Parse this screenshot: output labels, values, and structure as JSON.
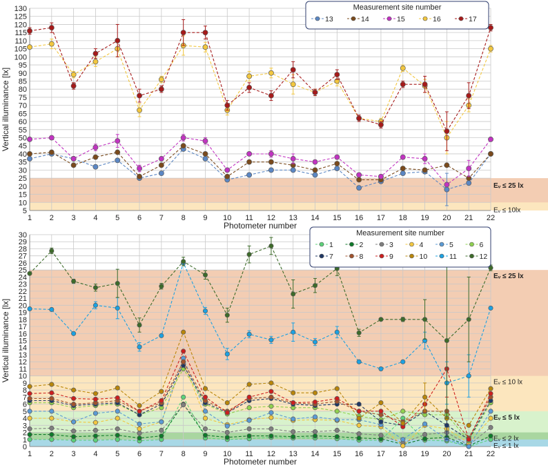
{
  "chart_data": [
    {
      "type": "line",
      "title": "",
      "xlabel": "Photometer number",
      "ylabel": "Vertical illuminance [lx]",
      "categories": [
        "1",
        "2",
        "3",
        "4",
        "5",
        "6",
        "7",
        "8",
        "9",
        "10",
        "11",
        "12",
        "13",
        "14",
        "15",
        "16",
        "17",
        "18",
        "19",
        "20",
        "21",
        "22"
      ],
      "ylim": [
        5,
        130
      ],
      "yticks": [
        5,
        10,
        15,
        20,
        25,
        30,
        35,
        40,
        45,
        50,
        55,
        60,
        65,
        70,
        75,
        80,
        85,
        90,
        95,
        100,
        105,
        110,
        115,
        120,
        125,
        130
      ],
      "legend_title": "Measurement site number",
      "legend_position": "top-right",
      "zones": [
        {
          "label": "Eᵥ ≤ 25 lx",
          "from": 5,
          "to": 25,
          "color": "#f3cdb3"
        },
        {
          "label": "Eᵥ ≤ 10lx",
          "from": 5,
          "to": 10,
          "color": "#fce6be"
        }
      ],
      "series": [
        {
          "name": "13",
          "color": "#5b87c4",
          "values": [
            37,
            40,
            37,
            32,
            36,
            25,
            28,
            43,
            37,
            24,
            27,
            30,
            30,
            27,
            31,
            19,
            23,
            28,
            29,
            18,
            22,
            40
          ],
          "errors": [
            0,
            0,
            0,
            0,
            0,
            0,
            0,
            0,
            0,
            0,
            0,
            0,
            0,
            0,
            0,
            0,
            0,
            0,
            0,
            10,
            0,
            0
          ]
        },
        {
          "name": "14",
          "color": "#7a4a1c",
          "values": [
            40,
            41,
            33,
            38,
            41,
            26,
            33,
            45,
            40,
            26,
            35,
            35,
            33,
            30,
            34,
            24,
            24,
            31,
            30,
            33,
            25,
            40
          ],
          "errors": [
            0,
            0,
            0,
            0,
            0,
            0,
            0,
            0,
            0,
            0,
            0,
            0,
            0,
            0,
            0,
            0,
            0,
            0,
            0,
            0,
            0,
            0
          ]
        },
        {
          "name": "15",
          "color": "#c133c1",
          "values": [
            49,
            50,
            37,
            44,
            48,
            31,
            37,
            50,
            48,
            30,
            40,
            40,
            37,
            35,
            38,
            27,
            26,
            38,
            37,
            21,
            31,
            49
          ],
          "errors": [
            0,
            0,
            0,
            2,
            4,
            2,
            0,
            2,
            2,
            0,
            0,
            2,
            3,
            0,
            0,
            0,
            0,
            0,
            3,
            0,
            5,
            0
          ]
        },
        {
          "name": "16",
          "color": "#f2c740",
          "values": [
            106,
            108,
            89,
            97,
            105,
            67,
            86,
            107,
            106,
            67,
            88,
            90,
            83,
            78,
            85,
            62,
            60,
            93,
            82,
            50,
            70,
            105
          ],
          "errors": [
            0,
            3,
            2,
            3,
            5,
            4,
            2,
            6,
            3,
            3,
            3,
            3,
            6,
            2,
            3,
            0,
            2,
            2,
            4,
            10,
            4,
            2
          ]
        },
        {
          "name": "17",
          "color": "#a61a1a",
          "values": [
            116,
            118,
            82,
            102,
            110,
            76,
            80,
            115,
            115,
            70,
            81,
            76,
            92,
            78,
            89,
            62,
            58,
            83,
            83,
            54,
            76,
            118
          ],
          "errors": [
            2,
            3,
            2,
            3,
            10,
            4,
            2,
            8,
            4,
            3,
            3,
            3,
            5,
            2,
            3,
            2,
            2,
            2,
            5,
            12,
            8,
            2
          ]
        }
      ]
    },
    {
      "type": "line",
      "title": "",
      "xlabel": "Photometer number",
      "ylabel": "Vertical illuminance [lx]",
      "categories": [
        "1",
        "2",
        "3",
        "4",
        "5",
        "6",
        "7",
        "8",
        "9",
        "10",
        "11",
        "12",
        "13",
        "14",
        "15",
        "16",
        "17",
        "18",
        "19",
        "20",
        "21",
        "22"
      ],
      "ylim": [
        0,
        30
      ],
      "yticks": [
        0,
        1,
        2,
        3,
        4,
        5,
        6,
        7,
        8,
        9,
        10,
        11,
        12,
        13,
        14,
        15,
        16,
        17,
        18,
        19,
        20,
        21,
        22,
        23,
        24,
        25,
        26,
        27,
        28,
        29,
        30
      ],
      "legend_title": "Measurement site number",
      "legend_position": "top-right",
      "zones": [
        {
          "label": "Eᵥ ≤ 25 lx",
          "from": 0,
          "to": 25,
          "color": "#f3cdb3"
        },
        {
          "label": "Eᵥ ≤ 10 lx",
          "from": 0,
          "to": 10,
          "color": "#fce6be"
        },
        {
          "label": "Eᵥ ≤ 5 lx",
          "from": 0,
          "to": 5,
          "color": "#d8f2cc"
        },
        {
          "label": "Eᵥ ≤ 2 lx",
          "from": 0,
          "to": 2,
          "color": "#a9d6a0"
        },
        {
          "label": "Eᵥ ≤ 1 lx",
          "from": 0,
          "to": 1,
          "color": "#a8d8e6"
        }
      ],
      "series": [
        {
          "name": "1",
          "color": "#5dd27a",
          "values": [
            1.0,
            1.0,
            0.9,
            0.9,
            1.0,
            0.8,
            1.0,
            7.0,
            1.2,
            1.0,
            1.1,
            1.3,
            1.2,
            1.2,
            1.1,
            0.9,
            0.9,
            4.0,
            0.9,
            0.8,
            0.0,
            1.0
          ],
          "errors": [
            0,
            0,
            0,
            0,
            0,
            0,
            0,
            0,
            0,
            0,
            0,
            0,
            0,
            0,
            0,
            0,
            0,
            0,
            0,
            0,
            0,
            0
          ]
        },
        {
          "name": "2",
          "color": "#0f7a2a",
          "values": [
            1.7,
            1.7,
            1.4,
            1.5,
            1.6,
            1.2,
            1.5,
            6.0,
            1.6,
            1.3,
            1.5,
            1.5,
            1.4,
            1.5,
            1.4,
            1.2,
            1.1,
            0.3,
            1.1,
            1.3,
            0.1,
            1.5
          ],
          "errors": [
            0,
            0,
            0,
            0,
            0,
            0,
            0,
            0,
            0,
            0,
            0,
            0,
            0,
            0,
            0,
            0,
            0,
            0,
            0,
            0,
            0,
            0
          ]
        },
        {
          "name": "3",
          "color": "#7f7f7f",
          "values": [
            2.5,
            2.6,
            2.2,
            2.3,
            2.5,
            1.9,
            2.3,
            5.9,
            2.5,
            2.0,
            2.5,
            2.5,
            2.1,
            2.1,
            2.3,
            1.8,
            1.6,
            0.5,
            1.7,
            2.0,
            0.2,
            2.7
          ],
          "errors": [
            0,
            0,
            0,
            0,
            0,
            0,
            0,
            0,
            0,
            0,
            0,
            0,
            0,
            0,
            0,
            0,
            0,
            0,
            0,
            0,
            0,
            0
          ]
        },
        {
          "name": "4",
          "color": "#f2c740",
          "values": [
            4.0,
            4.0,
            3.5,
            3.4,
            4.0,
            2.5,
            3.5,
            12.0,
            4.0,
            3.1,
            3.8,
            4.1,
            3.7,
            3.8,
            3.7,
            3.0,
            2.8,
            0.1,
            3.0,
            2.5,
            0.5,
            4.0
          ],
          "errors": [
            0,
            0,
            0,
            0,
            0,
            0,
            0,
            0,
            0,
            0,
            0,
            0,
            0,
            0,
            0,
            0,
            0,
            0,
            0,
            0,
            0,
            0
          ]
        },
        {
          "name": "5",
          "color": "#5b9bd5",
          "values": [
            5.0,
            5.0,
            3.5,
            4.7,
            5.0,
            3.2,
            3.5,
            12.5,
            5.0,
            2.9,
            3.7,
            4.8,
            3.9,
            4.2,
            3.8,
            3.8,
            3.1,
            1.0,
            3.2,
            1.0,
            0.0,
            5.0
          ],
          "errors": [
            0,
            0,
            0,
            0,
            0,
            0,
            0,
            0,
            0,
            0,
            0,
            0,
            0,
            0,
            0,
            0,
            0,
            0,
            0,
            0,
            0,
            0
          ]
        },
        {
          "name": "6",
          "color": "#8fd14f",
          "values": [
            6.2,
            6.2,
            5.5,
            5.8,
            6.0,
            4.5,
            5.5,
            11.0,
            6.0,
            4.6,
            5.5,
            5.7,
            5.5,
            5.5,
            5.0,
            4.3,
            3.8,
            5.0,
            4.5,
            4.5,
            0.8,
            6.2
          ],
          "errors": [
            0,
            0,
            0,
            0,
            0,
            0,
            0,
            0,
            0,
            0,
            0,
            0,
            0,
            0,
            0,
            0,
            0,
            0,
            0,
            0,
            0,
            0
          ]
        },
        {
          "name": "7",
          "color": "#1f3864",
          "values": [
            6.5,
            6.5,
            5.8,
            6.0,
            6.2,
            4.5,
            6.0,
            11.5,
            6.2,
            4.8,
            6.5,
            6.8,
            6.0,
            5.8,
            6.0,
            6.0,
            3.5,
            3.0,
            5.0,
            3.0,
            1.0,
            6.5
          ],
          "errors": [
            0,
            0,
            0,
            0,
            0,
            0,
            0,
            0,
            0,
            0,
            0,
            0,
            0,
            0,
            0,
            0,
            0,
            0,
            0,
            2,
            0,
            0
          ]
        },
        {
          "name": "8",
          "color": "#a0522d",
          "values": [
            6.8,
            6.8,
            6.0,
            6.2,
            6.5,
            5.0,
            6.2,
            12.0,
            6.5,
            5.0,
            6.8,
            7.0,
            6.2,
            6.0,
            6.4,
            5.0,
            4.5,
            3.5,
            5.0,
            5.0,
            1.2,
            7.0
          ],
          "errors": [
            0,
            0,
            0,
            0,
            0,
            0,
            0,
            0,
            0,
            0,
            0,
            0,
            0,
            0,
            0,
            0,
            0,
            0,
            0,
            0,
            0,
            0
          ]
        },
        {
          "name": "9",
          "color": "#cc1f1f",
          "values": [
            7.5,
            7.6,
            6.8,
            6.7,
            6.9,
            5.0,
            6.5,
            13.5,
            7.0,
            4.8,
            7.0,
            7.8,
            6.2,
            6.3,
            6.8,
            5.0,
            5.0,
            2.8,
            6.0,
            11.0,
            1.0,
            7.5
          ],
          "errors": [
            0,
            0,
            0,
            0,
            0,
            0,
            0,
            0,
            0,
            0,
            0,
            0,
            0,
            0,
            0,
            0,
            0,
            0,
            0,
            4,
            0,
            0
          ]
        },
        {
          "name": "10",
          "color": "#b8860b",
          "values": [
            8.5,
            8.8,
            8.0,
            7.5,
            8.3,
            5.8,
            7.8,
            16.2,
            8.2,
            6.2,
            8.8,
            9.0,
            7.6,
            7.6,
            8.2,
            4.0,
            6.2,
            3.3,
            7.0,
            4.0,
            3.0,
            8.2
          ],
          "errors": [
            0,
            0,
            0,
            0,
            0,
            0,
            0,
            0,
            0,
            0,
            0,
            0,
            0,
            0,
            0,
            0,
            0,
            0,
            2,
            0,
            0,
            0
          ]
        },
        {
          "name": "11",
          "color": "#1ba1e2",
          "values": [
            19.5,
            19.4,
            16.0,
            20.0,
            19.6,
            14.1,
            15.7,
            26.0,
            19.2,
            13.1,
            15.9,
            15.1,
            16.2,
            14.8,
            16.2,
            12.0,
            11.0,
            12.0,
            15.0,
            9.0,
            10.0,
            19.6
          ],
          "errors": [
            0,
            0,
            0,
            0.5,
            1.5,
            0.6,
            0,
            0,
            0.5,
            0.8,
            0.5,
            0.5,
            1.3,
            0.5,
            0.8,
            0,
            0,
            0,
            1.2,
            3,
            3,
            0
          ]
        },
        {
          "name": "12",
          "color": "#3d6b2a",
          "values": [
            24.5,
            27.7,
            23.4,
            22.5,
            23.1,
            17.2,
            22.7,
            26.2,
            24.3,
            18.6,
            27.2,
            28.4,
            21.6,
            22.8,
            25.2,
            16.1,
            18.0,
            18.0,
            18.0,
            15.0,
            18.0,
            25.3
          ],
          "errors": [
            0,
            0.4,
            0.3,
            0.5,
            2,
            1,
            0.4,
            0.6,
            0.6,
            1,
            1.2,
            1.2,
            2,
            1,
            1,
            0.5,
            0,
            0.3,
            2.8,
            11,
            6,
            0.4
          ]
        }
      ]
    }
  ]
}
